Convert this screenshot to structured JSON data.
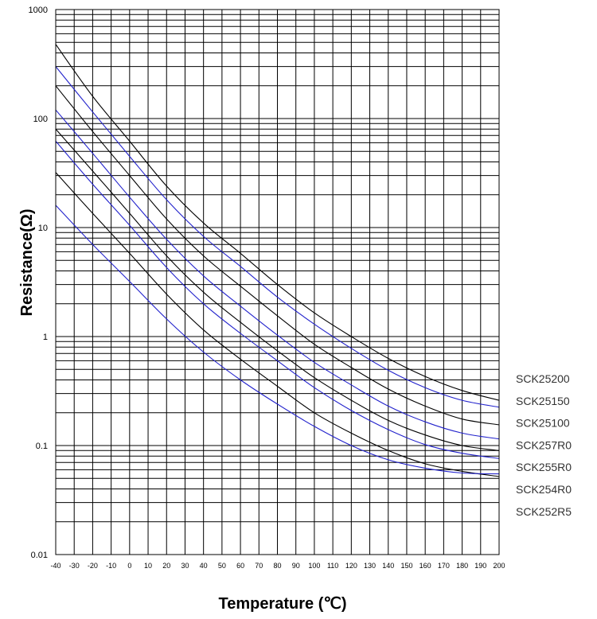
{
  "chart_data": {
    "type": "line",
    "xlabel": "Temperature (℃)",
    "ylabel": "Resistance(Ω)",
    "xlim": [
      -40,
      200
    ],
    "ylim": [
      0.01,
      1000
    ],
    "yscale": "log",
    "grid": true,
    "legend_position": "right",
    "x_ticks": [
      "-40",
      "-30",
      "-20",
      "-10",
      "0",
      "10",
      "20",
      "30",
      "40",
      "50",
      "60",
      "70",
      "80",
      "90",
      "100",
      "110",
      "120",
      "130",
      "140",
      "150",
      "160",
      "170",
      "180",
      "190",
      "200"
    ],
    "y_ticks": [
      "0.01",
      "0.1",
      "1",
      "10",
      "100",
      "1000"
    ],
    "x": [
      -40,
      -20,
      0,
      20,
      40,
      60,
      80,
      100,
      120,
      140,
      160,
      180,
      200
    ],
    "series": [
      {
        "name": "SCK25200",
        "color": "#000000",
        "values": [
          480,
          160,
          62,
          24,
          11,
          5.8,
          3.0,
          1.65,
          1.0,
          0.63,
          0.43,
          0.32,
          0.26
        ]
      },
      {
        "name": "SCK25150",
        "color": "#2222cc",
        "values": [
          300,
          115,
          45,
          18,
          8.3,
          4.4,
          2.3,
          1.3,
          0.78,
          0.49,
          0.34,
          0.26,
          0.225
        ]
      },
      {
        "name": "SCK25100",
        "color": "#000000",
        "values": [
          200,
          76,
          30,
          12,
          5.5,
          2.9,
          1.55,
          0.85,
          0.52,
          0.33,
          0.23,
          0.175,
          0.155
        ]
      },
      {
        "name": "SCK257R0",
        "color": "#2222cc",
        "values": [
          120,
          48,
          19,
          7.8,
          3.6,
          1.9,
          1.03,
          0.58,
          0.36,
          0.23,
          0.165,
          0.13,
          0.115
        ]
      },
      {
        "name": "SCK255R0",
        "color": "#000000",
        "values": [
          80,
          33,
          13.5,
          5.5,
          2.55,
          1.35,
          0.74,
          0.42,
          0.26,
          0.17,
          0.125,
          0.1,
          0.09
        ]
      },
      {
        "name": "SCK254R0",
        "color": "#2222cc",
        "values": [
          62,
          25,
          10.5,
          4.3,
          2.0,
          1.07,
          0.6,
          0.34,
          0.21,
          0.14,
          0.102,
          0.085,
          0.076
        ]
      },
      {
        "name": "SCK252R5",
        "color": "#000000",
        "values": [
          32,
          13.5,
          5.8,
          2.45,
          1.15,
          0.62,
          0.35,
          0.2,
          0.13,
          0.09,
          0.068,
          0.058,
          0.052
        ]
      },
      {
        "name": "",
        "color": "#2222cc",
        "values": [
          16,
          7.0,
          3.2,
          1.45,
          0.72,
          0.4,
          0.24,
          0.15,
          0.1,
          0.074,
          0.062,
          0.056,
          0.055
        ]
      }
    ]
  }
}
